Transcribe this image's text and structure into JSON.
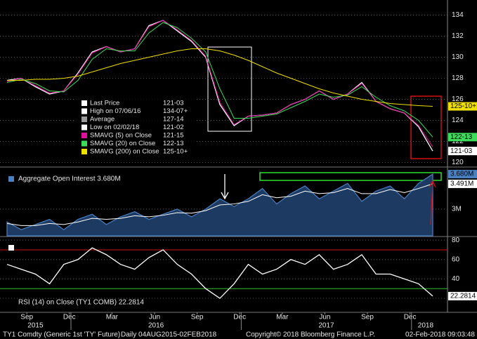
{
  "chart_data": {
    "type": "line",
    "categories": [
      null,
      "Sep",
      null,
      null,
      "Dec",
      null,
      null,
      "Mar",
      null,
      null,
      "Jun",
      null,
      null,
      "Sep",
      null,
      null,
      "Dec",
      null,
      null,
      "Mar",
      null,
      null,
      "Jun",
      null,
      null,
      "Sep",
      null,
      null,
      "Dec",
      null,
      null
    ],
    "years": [
      "2015",
      "2016",
      "2017",
      "2018"
    ],
    "panels": [
      {
        "type": "line",
        "ylim": [
          119.7,
          135.1
        ],
        "yticks": [
          120,
          122,
          124,
          126,
          128,
          130,
          132,
          134
        ],
        "legend": [
          {
            "name": "Last Price",
            "value_label": "121-03",
            "color": "#ffffff"
          },
          {
            "name": "High on 07/06/16",
            "value_label": "134-07+",
            "color": "#ffffff"
          },
          {
            "name": "Average",
            "value_label": "127-14",
            "color": "#9a9a9a"
          },
          {
            "name": "Low on 02/02/18",
            "value_label": "121-02",
            "color": "#ffffff"
          },
          {
            "name": "SMAVG (5) on Close",
            "value_label": "121-15",
            "color": "#e0109a"
          },
          {
            "name": "SMAVG (20) on Close",
            "value_label": "122-13",
            "color": "#3ddc5a"
          },
          {
            "name": "SMAVG (200) on Close",
            "value_label": "125-10+",
            "color": "#f0e000"
          }
        ],
        "series": [
          {
            "color": "#ffffff",
            "values": [
              127.8,
              128,
              127.2,
              126.5,
              126.8,
              128.5,
              130.5,
              131,
              130.5,
              130.8,
              133,
              133.5,
              132.5,
              131.5,
              130,
              125.5,
              123.5,
              124.4,
              124.5,
              124.7,
              125.5,
              126,
              126.8,
              126,
              126.5,
              127.6,
              125.8,
              125.1,
              124.7,
              123.4,
              121.09
            ]
          },
          {
            "color": "#e0109a",
            "values": [
              127.7,
              128,
              127.3,
              126.6,
              126.8,
              128.4,
              130.4,
              131,
              130.5,
              130.8,
              132.9,
              133.5,
              132.6,
              131.6,
              130.1,
              125.7,
              123.6,
              124.4,
              124.5,
              124.7,
              125.5,
              126,
              126.8,
              126,
              126.5,
              127.5,
              125.8,
              125.1,
              124.7,
              123.5,
              121.47
            ]
          },
          {
            "color": "#3ddc5a",
            "values": [
              127.6,
              127.9,
              127.5,
              126.8,
              126.7,
              127.8,
              129.8,
              130.8,
              130.6,
              130.6,
              132.3,
              133.3,
              132.8,
              131.8,
              130.5,
              127,
              124.2,
              124.2,
              124.4,
              124.6,
              125.2,
              125.8,
              126.5,
              126.2,
              126.4,
              127.2,
              126.2,
              125.4,
              124.9,
              124,
              122.41
            ]
          },
          {
            "color": "#f0e000",
            "values": [
              127.8,
              127.8,
              127.9,
              127.9,
              128,
              128.2,
              128.6,
              129,
              129.4,
              129.7,
              130,
              130.3,
              130.6,
              130.8,
              130.8,
              130.6,
              130.2,
              129.7,
              129.1,
              128.5,
              128,
              127.5,
              127,
              126.6,
              126.3,
              126,
              125.8,
              125.6,
              125.5,
              125.4,
              125.33
            ]
          }
        ]
      },
      {
        "type": "area",
        "title": "Aggregate Open Interest 3.680M",
        "ylim": [
          2.48,
          3.79
        ],
        "yticks": [
          {
            "value": 3,
            "label": "3M"
          }
        ],
        "tags": [
          {
            "value": 3.68,
            "label": "3.680M"
          },
          {
            "value": 3.491,
            "label": "3.491M"
          }
        ],
        "series": [
          {
            "color": "#4a7fc0",
            "values": [
              2.75,
              2.6,
              2.7,
              2.8,
              2.6,
              2.8,
              2.9,
              2.7,
              2.85,
              2.95,
              2.8,
              2.9,
              3.0,
              2.85,
              3.0,
              3.2,
              3.05,
              3.2,
              3.4,
              3.1,
              3.3,
              3.45,
              3.2,
              3.35,
              3.5,
              3.15,
              3.35,
              3.45,
              3.2,
              3.5,
              3.68
            ]
          },
          {
            "color": "#ffffff",
            "values": [
              2.72,
              2.68,
              2.68,
              2.72,
              2.7,
              2.75,
              2.82,
              2.8,
              2.82,
              2.87,
              2.85,
              2.88,
              2.93,
              2.92,
              2.97,
              3.08,
              3.1,
              3.15,
              3.28,
              3.22,
              3.25,
              3.35,
              3.3,
              3.32,
              3.4,
              3.3,
              3.3,
              3.38,
              3.32,
              3.4,
              3.491
            ]
          }
        ]
      },
      {
        "type": "line",
        "title": "RSI (14) on Close (TY1 COMB) 22.2814",
        "ylim": [
          7,
          83
        ],
        "yticks": [
          20,
          40,
          60,
          80
        ],
        "upper_band": 70,
        "lower_band": 30,
        "series": [
          {
            "color": "#ffffff",
            "values": [
              55,
              50,
              45,
              35,
              55,
              60,
              72,
              65,
              55,
              50,
              62,
              70,
              55,
              45,
              30,
              20,
              35,
              55,
              45,
              50,
              60,
              55,
              65,
              50,
              55,
              65,
              45,
              45,
              40,
              35,
              22.2814
            ]
          }
        ]
      }
    ]
  },
  "footer": {
    "security": "TY1 Comdty (Generic 1st 'TY' Future)",
    "range": "Daily 04AUG2015-02FEB2018",
    "copyright": "Copyright© 2018 Bloomberg Finance L.P.",
    "timestamp": "02-Feb-2018 09:03:48"
  }
}
